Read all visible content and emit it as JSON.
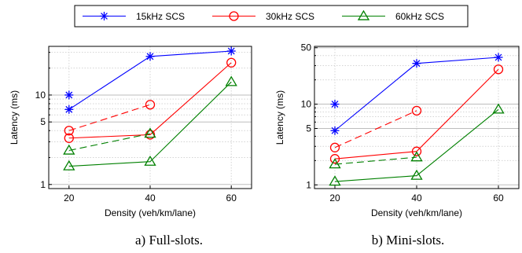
{
  "legend": [
    {
      "label": "15kHz SCS",
      "color": "#0000ff",
      "marker": "asterisk"
    },
    {
      "label": "30kHz SCS",
      "color": "#ff0000",
      "marker": "circle"
    },
    {
      "label": "60kHz SCS",
      "color": "#008000",
      "marker": "triangle"
    }
  ],
  "captions": {
    "a": "a) Full-slots.",
    "b": "b) Mini-slots."
  },
  "chart_data": [
    {
      "type": "line",
      "yscale": "log",
      "xlabel": "Density (veh/km/lane)",
      "ylabel": "Latency (ms)",
      "xlim": [
        15,
        65
      ],
      "ylim": [
        0.9,
        35
      ],
      "xticks": [
        20,
        40,
        60
      ],
      "yticks": [
        1,
        5,
        10
      ],
      "grid": true,
      "x": [
        20,
        40,
        60
      ],
      "series": [
        {
          "name": "15kHz SCS",
          "style": "solid",
          "values": [
            6.9,
            27,
            31
          ]
        },
        {
          "name": "15kHz SCS",
          "style": "isolated",
          "values": [
            10,
            null,
            null
          ]
        },
        {
          "name": "30kHz SCS",
          "style": "solid",
          "values": [
            3.3,
            3.6,
            23
          ]
        },
        {
          "name": "30kHz SCS",
          "style": "dashed",
          "values": [
            4.0,
            7.8,
            null
          ]
        },
        {
          "name": "60kHz SCS",
          "style": "solid",
          "values": [
            1.6,
            1.8,
            14
          ]
        },
        {
          "name": "60kHz SCS",
          "style": "dashed",
          "values": [
            2.4,
            3.7,
            null
          ]
        }
      ]
    },
    {
      "type": "line",
      "yscale": "log",
      "xlabel": "Density (veh/km/lane)",
      "ylabel": "Latency (ms)",
      "xlim": [
        15,
        65
      ],
      "ylim": [
        0.9,
        52
      ],
      "xticks": [
        20,
        40,
        60
      ],
      "yticks": [
        1,
        5,
        10,
        50
      ],
      "grid": true,
      "x": [
        20,
        40,
        60
      ],
      "series": [
        {
          "name": "15kHz SCS",
          "style": "solid",
          "values": [
            4.7,
            32,
            38
          ]
        },
        {
          "name": "15kHz SCS",
          "style": "isolated",
          "values": [
            10,
            null,
            null
          ]
        },
        {
          "name": "30kHz SCS",
          "style": "solid",
          "values": [
            2.1,
            2.6,
            27
          ]
        },
        {
          "name": "30kHz SCS",
          "style": "dashed",
          "values": [
            2.9,
            8.3,
            null
          ]
        },
        {
          "name": "60kHz SCS",
          "style": "solid",
          "values": [
            1.1,
            1.3,
            8.6
          ]
        },
        {
          "name": "60kHz SCS",
          "style": "dashed",
          "values": [
            1.8,
            2.2,
            null
          ]
        }
      ]
    }
  ]
}
